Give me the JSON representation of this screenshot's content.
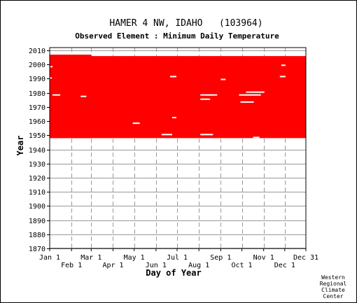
{
  "chart_data": {
    "type": "heatmap",
    "title": "HAMER 4 NW, IDAHO   (103964)",
    "subtitle": "Observed Element : Minimum Daily Temperature",
    "xlabel": "Day of Year",
    "ylabel": "Year",
    "ylim": [
      1870,
      2012
    ],
    "y_ticks": [
      1870,
      1880,
      1890,
      1900,
      1910,
      1920,
      1930,
      1940,
      1950,
      1960,
      1970,
      1980,
      1990,
      2000,
      2010
    ],
    "x_ticks_top": [
      "Jan 1",
      "Mar 1",
      "May 1",
      "Jul 1",
      "Sep 1",
      "Nov 1",
      "Dec 31"
    ],
    "x_ticks_bottom": [
      "Feb 1",
      "Apr 1",
      "Jun 1",
      "Aug 1",
      "Oct 1",
      "Dec 1"
    ],
    "grid": true,
    "fill_color": "#ff0000",
    "data_coverage": [
      {
        "name": "observed",
        "from_day": 1,
        "to_day": 365,
        "from_year": 1948,
        "to_year": 2005
      },
      {
        "name": "observed",
        "from_day": 1,
        "to_day": 59,
        "from_year": 1948,
        "to_year": 2006
      }
    ],
    "missing_segments": [
      {
        "year": 1998,
        "from_day": 2,
        "to_day": 4
      },
      {
        "year": 1990,
        "from_day": 1,
        "to_day": 3
      },
      {
        "year": 1978,
        "from_day": 5,
        "to_day": 15
      },
      {
        "year": 1977,
        "from_day": 45,
        "to_day": 52
      },
      {
        "year": 1958,
        "from_day": 119,
        "to_day": 128
      },
      {
        "year": 1991,
        "from_day": 172,
        "to_day": 180
      },
      {
        "year": 1962,
        "from_day": 175,
        "to_day": 180
      },
      {
        "year": 1950,
        "from_day": 160,
        "to_day": 174
      },
      {
        "year": 1978,
        "from_day": 215,
        "to_day": 238
      },
      {
        "year": 1975,
        "from_day": 215,
        "to_day": 228
      },
      {
        "year": 1950,
        "from_day": 215,
        "to_day": 232
      },
      {
        "year": 1980,
        "from_day": 280,
        "to_day": 305
      },
      {
        "year": 1978,
        "from_day": 270,
        "to_day": 300
      },
      {
        "year": 1973,
        "from_day": 272,
        "to_day": 290
      },
      {
        "year": 1989,
        "from_day": 244,
        "to_day": 250
      },
      {
        "year": 1991,
        "from_day": 328,
        "to_day": 335
      },
      {
        "year": 1999,
        "from_day": 330,
        "to_day": 335
      },
      {
        "year": 1948,
        "from_day": 290,
        "to_day": 298
      }
    ]
  },
  "credit": [
    "Western",
    "Regional",
    "Climate",
    "Center"
  ]
}
